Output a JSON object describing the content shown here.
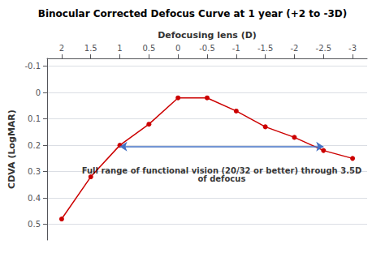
{
  "chart_data": {
    "type": "line",
    "title": "Binocular Corrected Defocus Curve at 1 year (+2 to -3D)",
    "xlabel": "Defocusing lens (D)",
    "ylabel": "CDVA (LogMAR)",
    "x": [
      2,
      1.5,
      1,
      0.5,
      0,
      -0.5,
      -1,
      -1.5,
      -2,
      -2.5,
      -3
    ],
    "values": [
      0.48,
      0.32,
      0.2,
      0.12,
      0.02,
      0.02,
      0.07,
      0.13,
      0.17,
      0.22,
      0.25
    ],
    "color": "#cc0000",
    "marker": "circle",
    "xlim": [
      2.25,
      -3.25
    ],
    "ylim": [
      0.56,
      -0.13
    ],
    "xticks": [
      2,
      1.5,
      1,
      0.5,
      0,
      -0.5,
      -1,
      -1.5,
      -2,
      -2.5,
      -3
    ],
    "yticks": [
      -0.1,
      0,
      0.1,
      0.2,
      0.3,
      0.4,
      0.5
    ],
    "grid": true,
    "annotations": [
      {
        "text": "Full range of functional vision (20/32 or better) through 3.5D\nof defocus",
        "x": -0.75,
        "y": 0.275
      }
    ],
    "arrow": {
      "x_start": 1.0,
      "x_end": -2.5,
      "y": 0.205,
      "color": "#4472c4"
    }
  }
}
